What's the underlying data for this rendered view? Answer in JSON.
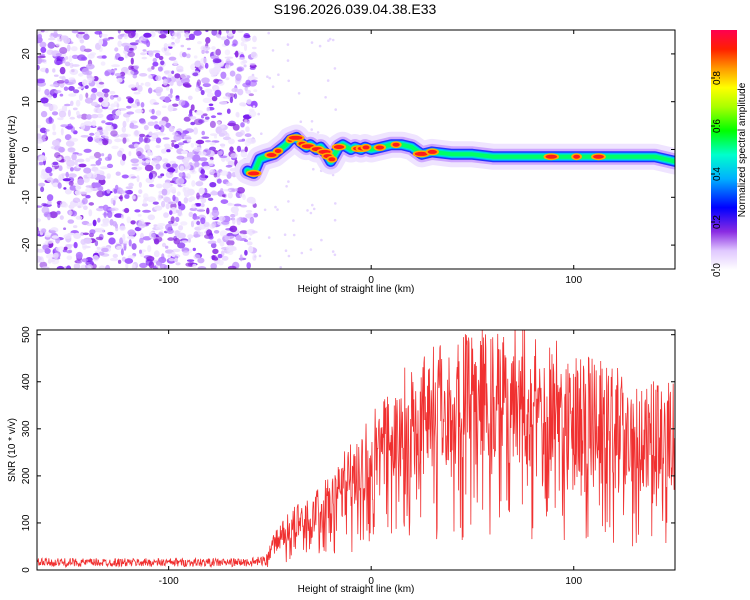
{
  "title": "S196.2026.039.04.38.E33",
  "chart_data": [
    {
      "type": "heatmap",
      "name": "spectrogram",
      "xlabel": "Height of straight line (km)",
      "ylabel": "Frequency (Hz)",
      "xlim": [
        -165,
        150
      ],
      "ylim": [
        -25,
        25
      ],
      "xticks": [
        -100,
        0,
        100
      ],
      "yticks": [
        -20,
        -10,
        0,
        10,
        20
      ],
      "noise_region_x": [
        -165,
        -60
      ],
      "ridge": {
        "x": [
          -61,
          -58,
          -55,
          -52,
          -48,
          -45,
          -42,
          -40,
          -37,
          -35,
          -32,
          -30,
          -27,
          -25,
          -22,
          -20,
          -18,
          -16,
          -14,
          -12,
          -10,
          -8,
          -5,
          -3,
          0,
          5,
          10,
          15,
          20,
          25,
          30,
          40,
          50,
          60,
          70,
          80,
          90,
          100,
          110,
          120,
          130,
          140,
          150
        ],
        "y": [
          -4.5,
          -5,
          -2,
          -1.5,
          -1,
          0,
          1,
          2,
          2.5,
          1.5,
          0.5,
          1,
          0,
          0.5,
          -1,
          -2.5,
          -1,
          0.5,
          1,
          0.5,
          0,
          0.5,
          0,
          0.5,
          0,
          0.5,
          1,
          1,
          0.5,
          -1,
          -0.5,
          -1,
          -1,
          -1.5,
          -1.5,
          -1.5,
          -1.5,
          -1.5,
          -1.5,
          -1.5,
          -1.5,
          -1.5,
          -2.5
        ]
      },
      "colorbar": {
        "label": "Normalized spectral amplitude",
        "range": [
          0,
          1
        ],
        "ticks": [
          "0.0",
          "0.2",
          "0.4",
          "0.6",
          "0.8"
        ]
      }
    },
    {
      "type": "line",
      "name": "snr",
      "xlabel": "Height of straight line (km)",
      "ylabel": "SNR (10 * v/v)",
      "xlim": [
        -165,
        150
      ],
      "ylim": [
        0,
        510
      ],
      "xticks": [
        -100,
        0,
        100
      ],
      "yticks": [
        0,
        100,
        200,
        300,
        400,
        500
      ],
      "color": "#f03030",
      "envelope": {
        "x": [
          -165,
          -60,
          -52,
          -48,
          -40,
          -30,
          -20,
          -10,
          -5,
          0,
          10,
          20,
          30,
          40,
          50,
          60,
          70,
          80,
          90,
          100,
          110,
          120,
          130,
          140,
          150
        ],
        "y": [
          20,
          20,
          25,
          60,
          100,
          120,
          160,
          220,
          240,
          260,
          300,
          350,
          380,
          380,
          390,
          400,
          410,
          395,
          380,
          360,
          345,
          335,
          320,
          310,
          305
        ]
      }
    }
  ]
}
